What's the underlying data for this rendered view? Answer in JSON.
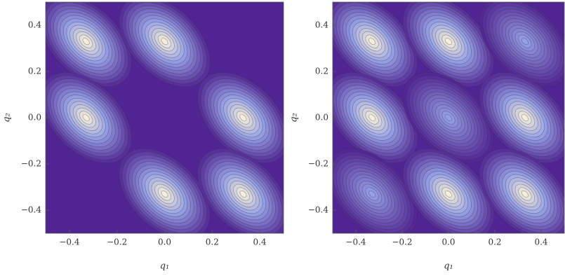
{
  "chart_data": [
    {
      "type": "contour",
      "xlabel": "q₁",
      "ylabel": "q₂",
      "x": [
        -0.33,
        0.0,
        -0.33,
        0.33,
        0.0,
        0.33
      ],
      "y": [
        0.33,
        0.33,
        0.0,
        0.0,
        -0.33,
        -0.33
      ],
      "z": [
        1,
        1,
        1,
        1,
        1,
        1
      ],
      "xlim": [
        -0.5,
        0.5
      ],
      "ylim": [
        -0.5,
        0.5
      ],
      "xticks": [
        {
          "value": -0.4,
          "label": "−0.4"
        },
        {
          "value": -0.2,
          "label": "−0.2"
        },
        {
          "value": 0,
          "label": "0.0"
        },
        0.2,
        0.4
      ],
      "yticks": [
        {
          "value": -0.4,
          "label": "−0.4"
        },
        {
          "value": -0.2,
          "label": "−0.2"
        },
        {
          "value": 0,
          "label": "0.0"
        },
        0.2,
        0.4
      ]
    },
    {
      "type": "contour",
      "xlabel": "q₁",
      "ylabel": "q₂",
      "x": [
        -0.33,
        0.0,
        0.33,
        -0.33,
        0.0,
        0.33,
        -0.33,
        0.0,
        0.33
      ],
      "y": [
        0.33,
        0.33,
        0.33,
        0.0,
        0.0,
        0.0,
        -0.33,
        -0.33,
        -0.33
      ],
      "z": [
        1,
        1,
        0.6,
        1,
        0.6,
        1,
        0.6,
        1,
        1
      ],
      "xlim": [
        -0.5,
        0.5
      ],
      "ylim": [
        -0.5,
        0.5
      ],
      "xticks": [
        {
          "value": -0.4,
          "label": "−0.4"
        },
        {
          "value": -0.2,
          "label": "−0.2"
        },
        {
          "value": 0,
          "label": "0.0"
        },
        0.2,
        0.4
      ],
      "yticks": [
        {
          "value": -0.4,
          "label": "−0.4"
        },
        {
          "value": -0.2,
          "label": "−0.2"
        },
        {
          "value": 0,
          "label": "0.0"
        },
        0.2,
        0.4
      ]
    }
  ]
}
